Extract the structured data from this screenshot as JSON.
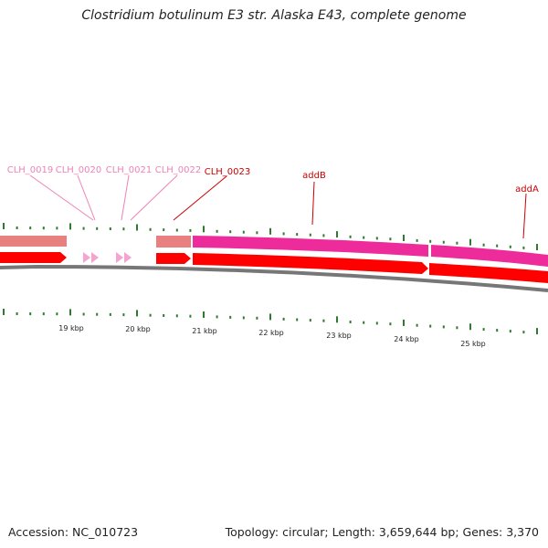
{
  "header": {
    "title": "Clostridium botulinum E3 str. Alaska E43, complete genome"
  },
  "footer": {
    "accession": "Accession: NC_010723",
    "summary": "Topology: circular; Length: 3,659,644 bp; Genes: 3,370"
  },
  "colors": {
    "gene_red": "#ff0000",
    "gene_magenta": "#ee2b9b",
    "gene_salmon": "#e7807f",
    "gene_pink": "#f4a4d0",
    "label_dark_red": "#cc0000",
    "label_pink": "#ee82b6",
    "tick_green": "#2f7a2f",
    "backbone_gray": "#777777"
  },
  "genes": [
    {
      "name": "CLH_0019",
      "style": "light"
    },
    {
      "name": "CLH_0020",
      "style": "light"
    },
    {
      "name": "CLH_0021",
      "style": "light"
    },
    {
      "name": "CLH_0022",
      "style": "light"
    },
    {
      "name": "CLH_0023",
      "style": "dark"
    },
    {
      "name": "addB",
      "style": "dark"
    },
    {
      "name": "addA",
      "style": "dark"
    }
  ],
  "scale_labels": [
    "19 kbp",
    "20 kbp",
    "21 kbp",
    "22 kbp",
    "23 kbp",
    "24 kbp",
    "25 kbp"
  ]
}
